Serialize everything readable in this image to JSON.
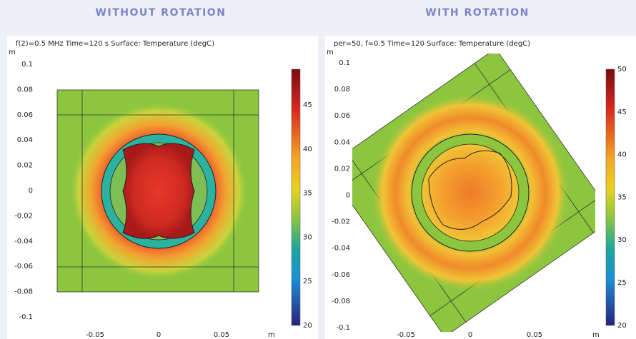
{
  "panels": [
    {
      "header": "WITHOUT ROTATION",
      "plot_title": "f(2)=0.5 MHz Time=120 s   Surface: Temperature (degC)",
      "axis_unit": "m",
      "yticks": [
        "0.1",
        "0.08",
        "0.06",
        "0.04",
        "0.02",
        "0",
        "-0.02",
        "-0.04",
        "-0.06",
        "-0.08",
        "-0.1"
      ],
      "xticks": [
        "-0.05",
        "0",
        "0.05"
      ],
      "x_unit": "m",
      "colorbar_ticks": [
        "45",
        "40",
        "35",
        "30",
        "25",
        "20"
      ]
    },
    {
      "header": "WITH ROTATION",
      "plot_title": "per=50, f=0.5 Time=120   Surface: Temperature (degC)",
      "axis_unit": "m",
      "yticks": [
        "0.1",
        "0.08",
        "0.06",
        "0.04",
        "0.02",
        "0",
        "-0.02",
        "-0.04",
        "-0.06",
        "-0.08",
        "-0.1"
      ],
      "xticks": [
        "-0.05",
        "0",
        "0.05"
      ],
      "x_unit": "m",
      "colorbar_ticks": [
        "50",
        "45",
        "40",
        "35",
        "30",
        "25",
        "20"
      ]
    }
  ]
}
